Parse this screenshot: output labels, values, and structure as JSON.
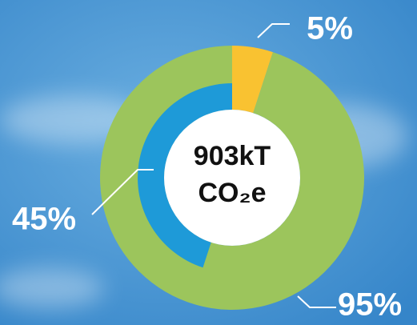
{
  "chart_data": {
    "type": "donut",
    "center_text": [
      "903kT",
      "CO₂e"
    ],
    "rings": [
      {
        "values": [
          5,
          95
        ],
        "value_labels": [
          "5%",
          "95%"
        ],
        "colors": [
          "#f9c231",
          "#9cc55c"
        ]
      },
      {
        "values": [
          45
        ],
        "value_labels": [
          "45%"
        ],
        "colors": [
          "#1e9ad8"
        ]
      }
    ]
  }
}
